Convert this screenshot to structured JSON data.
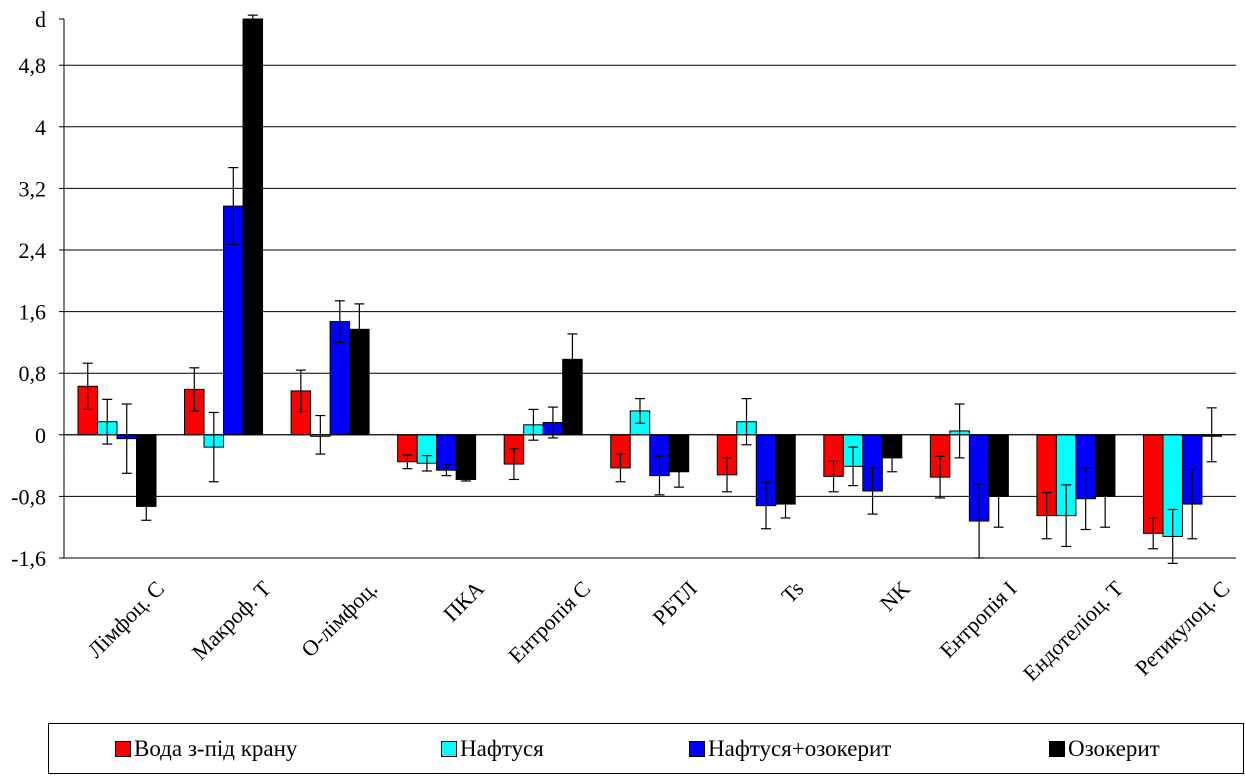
{
  "chart_data": {
    "type": "bar",
    "ylabel": "d",
    "ylim": [
      -1.6,
      5.4
    ],
    "yticks": [
      {
        "value": 4.8,
        "label": "4,8"
      },
      {
        "value": 4,
        "label": "4"
      },
      {
        "value": 3.2,
        "label": "3,2"
      },
      {
        "value": 2.4,
        "label": "2,4"
      },
      {
        "value": 1.6,
        "label": "1,6"
      },
      {
        "value": 0.8,
        "label": "0,8"
      },
      {
        "value": 0,
        "label": "0"
      },
      {
        "value": -0.8,
        "label": "-0,8"
      },
      {
        "value": -1.6,
        "label": "-1,6"
      }
    ],
    "grid": true,
    "legend_position": "bottom",
    "categories": [
      "Лімфоц. С",
      "Макроф. Т",
      "О-лімфоц.",
      "ПКА",
      "Ентропія С",
      "РБТЛ",
      "Ts",
      "NK",
      "Ентропія І",
      "Ендотеліоц. Т",
      "Ретикулоц. С"
    ],
    "series": [
      {
        "name": "Вода з-під крану",
        "color": "#ff0000",
        "values": [
          0.63,
          0.59,
          0.57,
          -0.35,
          -0.38,
          -0.43,
          -0.52,
          -0.54,
          -0.55,
          -1.05,
          -1.28
        ],
        "errors": [
          0.3,
          0.28,
          0.27,
          0.09,
          0.2,
          0.18,
          0.22,
          0.2,
          0.27,
          0.3,
          0.2
        ]
      },
      {
        "name": "Нафтуся",
        "color": "#00ffff",
        "values": [
          0.17,
          -0.16,
          0.0,
          -0.37,
          0.13,
          0.31,
          0.17,
          -0.41,
          0.05,
          -1.05,
          -1.32
        ],
        "errors": [
          0.29,
          0.45,
          0.25,
          0.1,
          0.2,
          0.16,
          0.3,
          0.25,
          0.35,
          0.4,
          0.35
        ]
      },
      {
        "name": "Нафтуся+озокерит",
        "color": "#0000ff",
        "values": [
          -0.05,
          2.97,
          1.47,
          -0.46,
          0.16,
          -0.53,
          -0.92,
          -0.73,
          -1.12,
          -0.83,
          -0.9
        ],
        "errors": [
          0.45,
          0.5,
          0.27,
          0.07,
          0.2,
          0.25,
          0.3,
          0.3,
          0.48,
          0.4,
          0.45
        ]
      },
      {
        "name": "Озокерит",
        "color": "#000000",
        "values": [
          -0.93,
          5.4,
          1.37,
          -0.58,
          0.98,
          -0.48,
          -0.9,
          -0.3,
          -0.8,
          -0.8,
          0.0
        ],
        "errors": [
          0.18,
          0.05,
          0.33,
          0.02,
          0.33,
          0.2,
          0.18,
          0.18,
          0.4,
          0.4,
          0.35
        ]
      }
    ]
  }
}
